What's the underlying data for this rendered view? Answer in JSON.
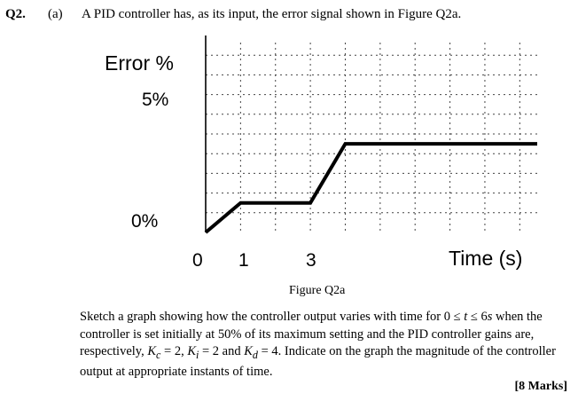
{
  "question": {
    "number": "Q2.",
    "part": "(a)",
    "intro": "A PID controller has, as its input, the error signal shown in Figure Q2a.",
    "caption": "Figure Q2a",
    "body": {
      "t1": "Sketch a graph showing how the controller output varies with time for 0 ≤ ",
      "v_t": "t",
      "t2": " ≤ 6",
      "v_s": "s",
      "t3": " when the controller is set initially at 50% of its maximum setting and the PID controller gains are, respectively, ",
      "v_kc": "K",
      "sub_c": "c",
      "t4": " = 2, ",
      "v_ki": "K",
      "sub_i": "i",
      "t5": " = 2 and ",
      "v_kd": "K",
      "sub_d": "d",
      "t6": " = 4. Indicate on the graph the magnitude of the controller output at appropriate instants of time."
    },
    "marks": "[8 Marks]"
  },
  "chart_data": {
    "type": "line",
    "ylabel": "Error %",
    "xlabel": "Time (s)",
    "y_tick_labels": [
      "0%",
      "5%"
    ],
    "x_tick_labels": [
      "0",
      "1",
      "3"
    ],
    "x_range": [
      0,
      9.5
    ],
    "y_range": [
      0,
      10
    ],
    "grid": true,
    "grid_style": "dashed",
    "series": [
      {
        "x": [
          0,
          1,
          3,
          4,
          9.5
        ],
        "y": [
          0,
          1.5,
          1.5,
          4.5,
          4.5
        ]
      }
    ]
  }
}
